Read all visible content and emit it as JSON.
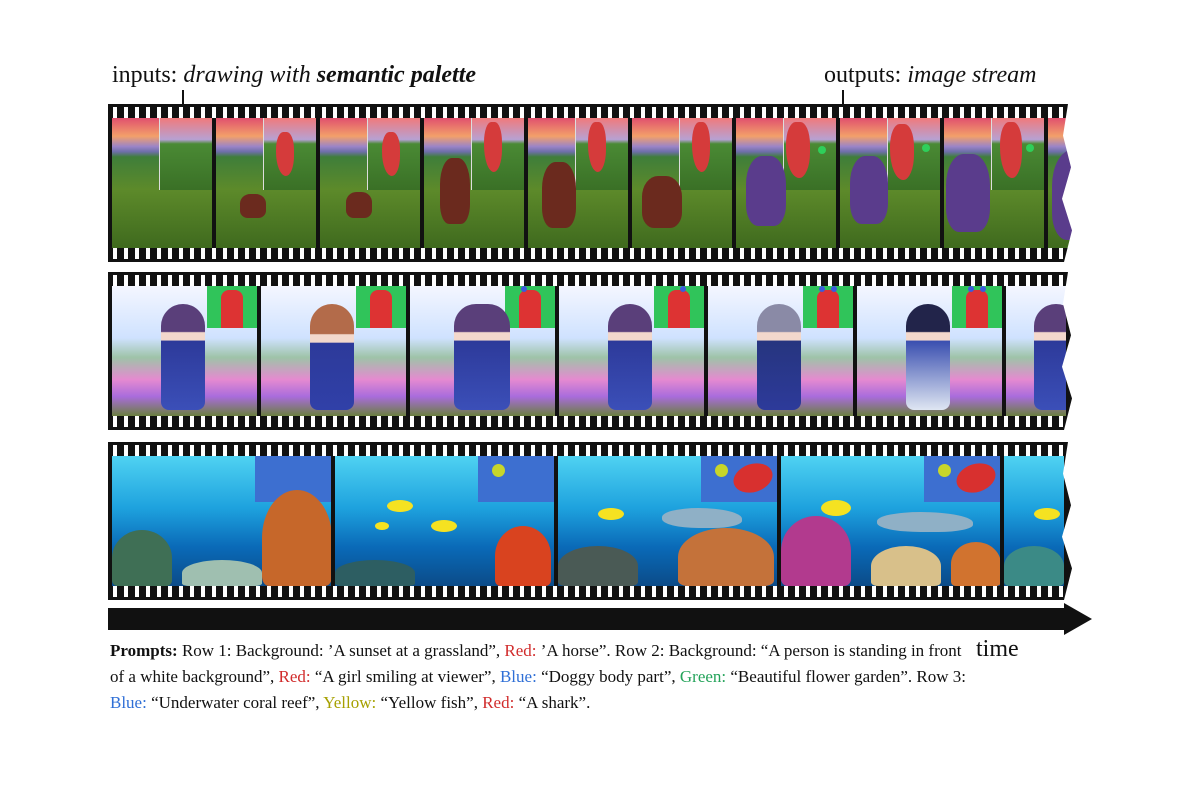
{
  "header": {
    "inputs_prefix": "inputs: ",
    "inputs_italic": "drawing with ",
    "inputs_bold": "semantic palette",
    "outputs_prefix": "outputs: ",
    "outputs_italic": "image stream"
  },
  "time_label": "time",
  "caption": {
    "lead": "Prompts:",
    "t1": " Row 1: Background: ’A sunset at a grassland”, ",
    "red1_label": "Red:",
    "t2": " ’A horse”. Row 2: Background: “A person is standing in front of a white background”, ",
    "red2_label": "Red:",
    "t3": " “A girl smiling at viewer”, ",
    "blue1_label": "Blue:",
    "t4": " “Doggy body part”, ",
    "green_label": "Green:",
    "t5": " “Beautiful flower garden”. Row 3: ",
    "blue2_label": "Blue:",
    "t6": " “Underwater coral reef”, ",
    "yellow_label": "Yellow:",
    "t7": " “Yellow fish”, ",
    "red3_label": "Red:",
    "t8": " “A shark”."
  },
  "colors": {
    "red": "#d12c2c",
    "blue": "#2f6fd6",
    "green": "#24a35a",
    "yellow": "#a6a000"
  }
}
